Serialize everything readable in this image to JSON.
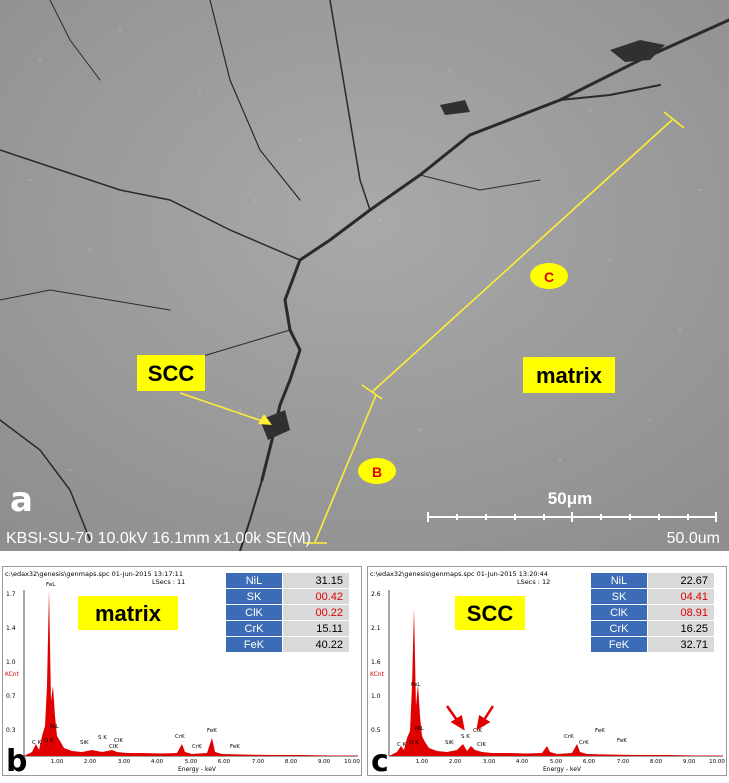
{
  "sem": {
    "panel_letter": "a",
    "instrument_info": "KBSI-SU-70 10.0kV 16.1mm x1.00k SE(M)",
    "scale_label": "50μm",
    "scale_readout": "50.0um",
    "labels": {
      "scc": "SCC",
      "matrix": "matrix",
      "point_b": "B",
      "point_c": "C"
    }
  },
  "spectra": [
    {
      "panel_letter": "b",
      "header": "c:\\edax32\\genesis\\genmaps.spc 01-Jun-2015 13:17:11",
      "lsecs": "LSecs : 11",
      "label": "matrix",
      "ytick_labels": [
        "1.7",
        "1.4",
        "1.0",
        "0.7",
        "0.3"
      ],
      "y_unit": "KCnt",
      "xtick_labels": [
        "1.00",
        "2.00",
        "3.00",
        "4.00",
        "5.00",
        "6.00",
        "7.00",
        "8.00",
        "9.00",
        "10.00"
      ],
      "x_label": "Energy - keV",
      "peak_labels": [
        "FeL",
        "NiL",
        "C K",
        "O K",
        "SiK",
        "S K",
        "ClK",
        "ClK",
        "CrK",
        "CrK",
        "FeK",
        "FeK"
      ],
      "composition": [
        {
          "element": "NiL",
          "value": "31.15",
          "highlight": false
        },
        {
          "element": "SK",
          "value": "00.42",
          "highlight": true
        },
        {
          "element": "ClK",
          "value": "00.22",
          "highlight": true
        },
        {
          "element": "CrK",
          "value": "15.11",
          "highlight": false
        },
        {
          "element": "FeK",
          "value": "40.22",
          "highlight": false
        }
      ]
    },
    {
      "panel_letter": "c",
      "header": "c:\\edax32\\genesis\\genmaps.spc 01-Jun-2015 13:20:44",
      "lsecs": "LSecs : 12",
      "label": "SCC",
      "ytick_labels": [
        "2.6",
        "2.1",
        "1.6",
        "1.0",
        "0.5"
      ],
      "y_unit": "KCnt",
      "xtick_labels": [
        "1.00",
        "2.00",
        "3.00",
        "4.00",
        "5.00",
        "6.00",
        "7.00",
        "8.00",
        "9.00",
        "10.00"
      ],
      "x_label": "Energy - keV",
      "peak_labels": [
        "FeL",
        "NiL",
        "C K",
        "O K",
        "SiK",
        "S K",
        "ClK",
        "ClK",
        "CrK",
        "CrK",
        "FeK",
        "FeK"
      ],
      "composition": [
        {
          "element": "NiL",
          "value": "22.67",
          "highlight": false
        },
        {
          "element": "SK",
          "value": "04.41",
          "highlight": true
        },
        {
          "element": "ClK",
          "value": "08.91",
          "highlight": true
        },
        {
          "element": "CrK",
          "value": "16.25",
          "highlight": false
        },
        {
          "element": "FeK",
          "value": "32.71",
          "highlight": false
        }
      ]
    }
  ],
  "colors": {
    "spectrum_fill": "#e00000",
    "label_box": "#ffff00",
    "table_header": "#3b6cb5",
    "highlight_text": "#e00000",
    "line_yellow": "#ffee33"
  }
}
